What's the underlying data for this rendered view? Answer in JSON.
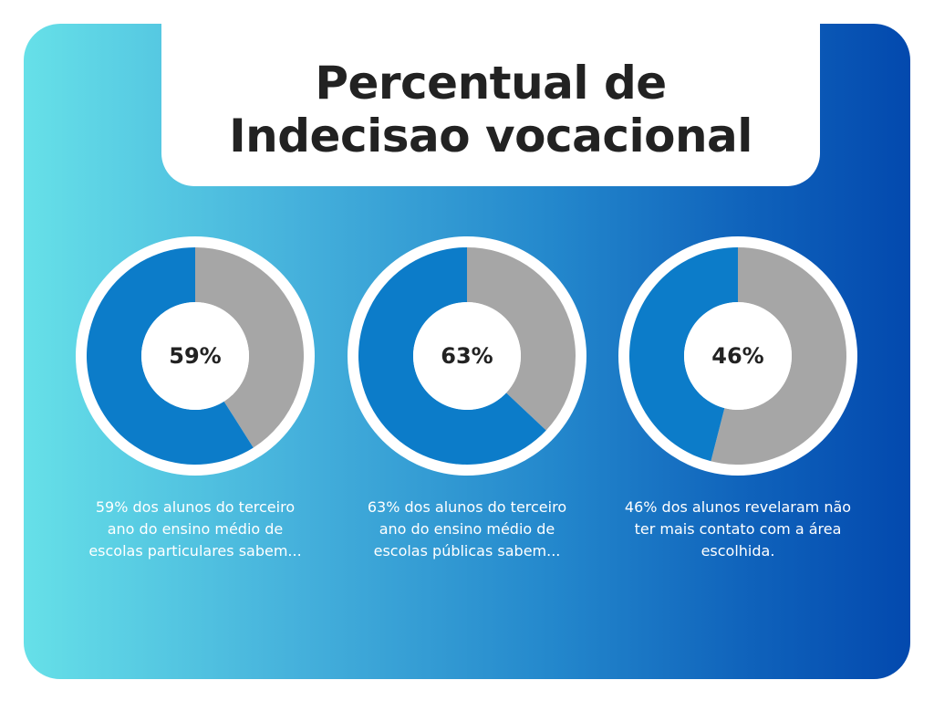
{
  "title": {
    "line1": "Percentual de",
    "line2": "Indecisao vocacional"
  },
  "colors": {
    "primary": "#0c7cc9",
    "remainder": "#a6a6a6",
    "ring": "#ffffff",
    "background_start": "#66e0e8",
    "background_end": "#0349ae"
  },
  "chart_data": [
    {
      "type": "pie",
      "value_label": "59%",
      "slices": [
        {
          "value": 59,
          "color": "#0c7cc9"
        },
        {
          "value": 41,
          "color": "#a6a6a6"
        }
      ],
      "caption": "59% dos alunos do terceiro ano do ensino médio de escolas particulares sabem..."
    },
    {
      "type": "pie",
      "value_label": "63%",
      "slices": [
        {
          "value": 63,
          "color": "#0c7cc9"
        },
        {
          "value": 37,
          "color": "#a6a6a6"
        }
      ],
      "caption": "63% dos alunos do terceiro ano do ensino médio de escolas públicas sabem..."
    },
    {
      "type": "pie",
      "value_label": "46%",
      "slices": [
        {
          "value": 46,
          "color": "#0c7cc9"
        },
        {
          "value": 54,
          "color": "#a6a6a6"
        }
      ],
      "caption": "46% dos alunos revelaram não ter mais contato com a área escolhida."
    }
  ]
}
